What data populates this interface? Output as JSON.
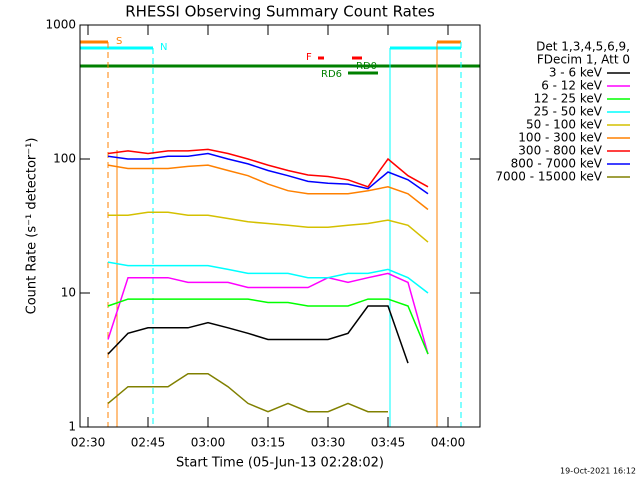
{
  "chart_data": {
    "type": "line",
    "title": "RHESSI Observing Summary Count Rates",
    "x_label": "Start Time (05-Jun-13 02:28:02)",
    "y_label": "Count Rate (s⁻¹ detector⁻¹)",
    "legend_header": [
      "Det 1,3,4,5,6,9,",
      "FDecim 1, Att 0"
    ],
    "footer": "19-Oct-2021 16:12",
    "flags": [
      "S",
      "N",
      "F",
      "RD0",
      "RD6"
    ],
    "log_y": true,
    "xlim": [
      148,
      248
    ],
    "xticks": [
      {
        "value": 150,
        "label": "02:30"
      },
      {
        "value": 165,
        "label": "02:45"
      },
      {
        "value": 180,
        "label": "03:00"
      },
      {
        "value": 195,
        "label": "03:15"
      },
      {
        "value": 210,
        "label": "03:30"
      },
      {
        "value": 225,
        "label": "03:45"
      },
      {
        "value": 240,
        "label": "04:00"
      }
    ],
    "ylim": [
      1,
      1000
    ],
    "yticks": [
      1,
      10,
      100,
      1000
    ],
    "x": [
      155,
      160,
      165,
      170,
      175,
      180,
      185,
      190,
      195,
      200,
      205,
      210,
      215,
      220,
      225,
      230,
      235
    ],
    "series": [
      {
        "name": "3 - 6 keV",
        "color": "#000000",
        "values": [
          3.5,
          5,
          5.5,
          5.5,
          5.5,
          6,
          5.5,
          5,
          4.5,
          4.5,
          4.5,
          4.5,
          5,
          8,
          8,
          3,
          null
        ]
      },
      {
        "name": "6 - 12 keV",
        "color": "#ff00ff",
        "values": [
          4.5,
          13,
          13,
          13,
          12,
          12,
          12,
          11,
          11,
          11,
          11,
          13,
          12,
          13,
          14,
          12,
          3.5
        ]
      },
      {
        "name": "12 - 25 keV",
        "color": "#00ff00",
        "values": [
          8,
          9,
          9,
          9,
          9,
          9,
          9,
          9,
          8.5,
          8.5,
          8,
          8,
          8,
          9,
          9,
          8,
          3.5
        ]
      },
      {
        "name": "25 - 50 keV",
        "color": "#00ffff",
        "values": [
          17,
          16,
          16,
          16,
          16,
          16,
          15,
          14,
          14,
          14,
          13,
          13,
          14,
          14,
          15,
          13,
          10
        ]
      },
      {
        "name": "50 - 100 keV",
        "color": "#d4c000",
        "values": [
          38,
          38,
          40,
          40,
          38,
          38,
          36,
          34,
          33,
          32,
          31,
          31,
          32,
          33,
          35,
          32,
          24
        ]
      },
      {
        "name": "100 - 300 keV",
        "color": "#ff8000",
        "values": [
          90,
          85,
          85,
          85,
          88,
          90,
          82,
          75,
          65,
          58,
          55,
          55,
          55,
          58,
          62,
          55,
          42
        ]
      },
      {
        "name": "300 - 800 keV",
        "color": "#ff0000",
        "values": [
          110,
          115,
          110,
          115,
          115,
          118,
          110,
          100,
          90,
          82,
          76,
          74,
          70,
          62,
          100,
          75,
          62
        ]
      },
      {
        "name": "800 - 7000 keV",
        "color": "#0000ff",
        "values": [
          105,
          100,
          100,
          105,
          105,
          110,
          100,
          92,
          82,
          75,
          68,
          66,
          65,
          60,
          80,
          70,
          55
        ]
      },
      {
        "name": "7000 - 15000 keV",
        "color": "#808000",
        "values": [
          1.5,
          2,
          2,
          2,
          2.5,
          2.5,
          2,
          1.5,
          1.3,
          1.5,
          1.3,
          1.3,
          1.5,
          1.3,
          1.3,
          null,
          null
        ]
      }
    ]
  }
}
